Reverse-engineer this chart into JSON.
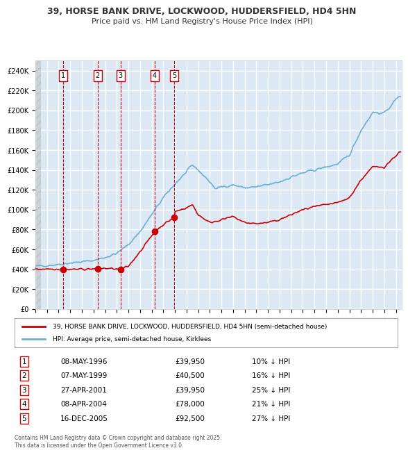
{
  "title_line1": "39, HORSE BANK DRIVE, LOCKWOOD, HUDDERSFIELD, HD4 5HN",
  "title_line2": "Price paid vs. HM Land Registry's House Price Index (HPI)",
  "bg_color": "#dce9f5",
  "plot_bg_color": "#dce9f5",
  "hpi_color": "#6aaed6",
  "price_color": "#cc0000",
  "sale_marker_color": "#cc0000",
  "vline_color": "#cc0000",
  "grid_color": "#ffffff",
  "sale_points": [
    {
      "date_num": 1996.36,
      "price": 39950,
      "label": "1"
    },
    {
      "date_num": 1999.35,
      "price": 40500,
      "label": "2"
    },
    {
      "date_num": 2001.32,
      "price": 39950,
      "label": "3"
    },
    {
      "date_num": 2004.27,
      "price": 78000,
      "label": "4"
    },
    {
      "date_num": 2005.96,
      "price": 92500,
      "label": "5"
    }
  ],
  "sale_table": [
    {
      "num": "1",
      "date": "08-MAY-1996",
      "price": "£39,950",
      "hpi": "10% ↓ HPI"
    },
    {
      "num": "2",
      "date": "07-MAY-1999",
      "price": "£40,500",
      "hpi": "16% ↓ HPI"
    },
    {
      "num": "3",
      "date": "27-APR-2001",
      "price": "£39,950",
      "hpi": "25% ↓ HPI"
    },
    {
      "num": "4",
      "date": "08-APR-2004",
      "price": "£78,000",
      "hpi": "21% ↓ HPI"
    },
    {
      "num": "5",
      "date": "16-DEC-2005",
      "price": "£92,500",
      "hpi": "27% ↓ HPI"
    }
  ],
  "legend_line1": "39, HORSE BANK DRIVE, LOCKWOOD, HUDDERSFIELD, HD4 5HN (semi-detached house)",
  "legend_line2": "HPI: Average price, semi-detached house, Kirklees",
  "footnote": "Contains HM Land Registry data © Crown copyright and database right 2025.\nThis data is licensed under the Open Government Licence v3.0.",
  "ylim": [
    0,
    250000
  ],
  "ytick_step": 20000,
  "xmin": 1994.0,
  "xmax": 2025.5
}
